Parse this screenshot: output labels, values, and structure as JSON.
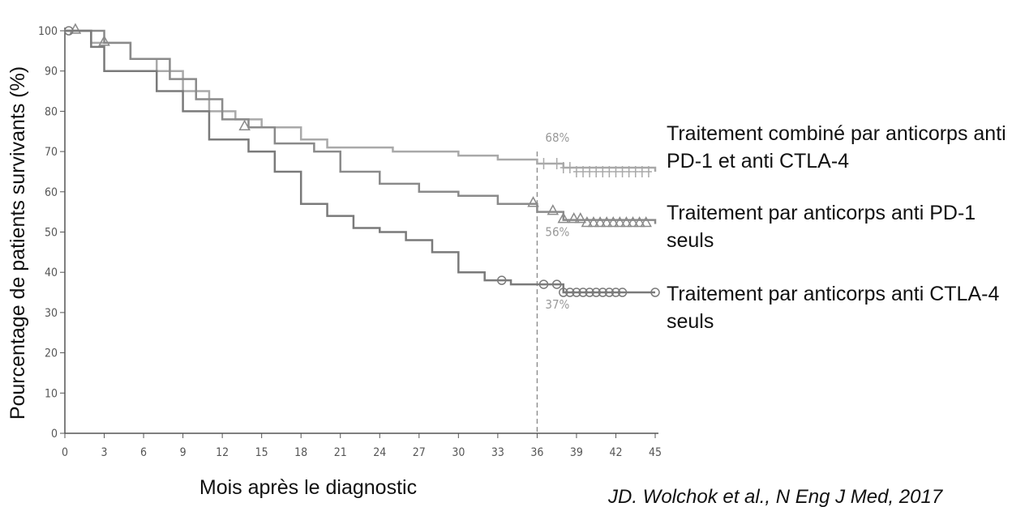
{
  "chart_data": {
    "type": "step",
    "x_label": "Mois après le diagnostic",
    "y_label": "Pourcentage de patients survivants (%)",
    "xlim": [
      0,
      45
    ],
    "ylim": [
      0,
      100
    ],
    "xticks": [
      0,
      3,
      6,
      9,
      12,
      15,
      18,
      21,
      24,
      27,
      30,
      33,
      36,
      39,
      42,
      45
    ],
    "yticks": [
      0,
      10,
      20,
      30,
      40,
      50,
      60,
      70,
      80,
      90,
      100
    ],
    "reference_x": 36,
    "series": [
      {
        "name": "Traitement combiné par anticorps anti PD-1 et anti CTLA-4",
        "color": "#a9a9a9",
        "marker": "plus",
        "x": [
          0,
          2,
          5,
          7,
          9,
          11,
          13,
          15,
          18,
          20,
          25,
          30,
          33,
          36,
          38,
          45
        ],
        "values": [
          100,
          97,
          93,
          90,
          85,
          80,
          78,
          76,
          73,
          71,
          70,
          69,
          68,
          67,
          66,
          65
        ],
        "censored_x": [
          36.5,
          37.5,
          38,
          38.5,
          39,
          39.5,
          40,
          40.5,
          41,
          41.5,
          42,
          42.5,
          43,
          43.5,
          44,
          44.5
        ],
        "censored_y": [
          67,
          67,
          66,
          66,
          65,
          65,
          65,
          65,
          65,
          65,
          65,
          65,
          65,
          65,
          65,
          65
        ],
        "annotation": "68%",
        "annotation_value": 68
      },
      {
        "name": "Traitement par anticorps anti PD-1 seuls",
        "color": "#8a8a8a",
        "marker": "triangle",
        "x": [
          0,
          3,
          5,
          8,
          10,
          12,
          14,
          16,
          19,
          21,
          24,
          27,
          30,
          33,
          36,
          38,
          45
        ],
        "values": [
          100,
          97,
          93,
          88,
          83,
          78,
          76,
          72,
          70,
          65,
          62,
          60,
          59,
          57,
          55,
          53,
          52
        ],
        "censored_x": [
          0.8,
          3,
          13.7,
          35.7,
          37.2,
          38,
          38.8,
          39.3,
          39.8,
          40.3,
          40.8,
          41.3,
          41.8,
          42.3,
          42.8,
          43.3,
          43.8,
          44.3
        ],
        "censored_y": [
          100,
          97,
          76,
          57,
          55,
          53,
          53,
          53,
          52,
          52,
          52,
          52,
          52,
          52,
          52,
          52,
          52,
          52
        ],
        "annotation": "56%",
        "annotation_value": 56
      },
      {
        "name": "Traitement par anticorps anti CTLA-4 seuls",
        "color": "#7a7a7a",
        "marker": "circle",
        "x": [
          0,
          2,
          3,
          5,
          7,
          9,
          11,
          14,
          16,
          18,
          20,
          22,
          24,
          26,
          28,
          30,
          32,
          34,
          38,
          45
        ],
        "values": [
          100,
          96,
          90,
          90,
          85,
          80,
          73,
          70,
          65,
          57,
          54,
          51,
          50,
          48,
          45,
          40,
          38,
          37,
          35,
          35
        ],
        "censored_x": [
          0.3,
          33.3,
          36.5,
          37.5,
          38,
          38.5,
          39,
          39.5,
          40,
          40.5,
          41,
          41.5,
          42,
          42.5,
          45
        ],
        "censored_y": [
          100,
          38,
          37,
          37,
          35,
          35,
          35,
          35,
          35,
          35,
          35,
          35,
          35,
          35,
          35
        ],
        "annotation": "37%",
        "annotation_value": 37
      }
    ],
    "source": "JD. Wolchok et al., N Eng J Med, 2017"
  }
}
